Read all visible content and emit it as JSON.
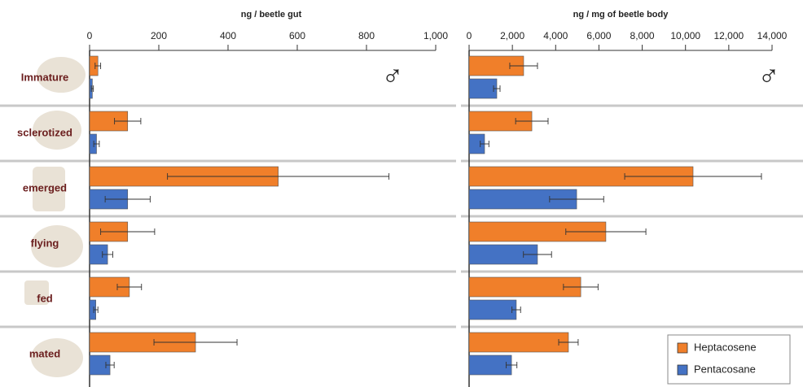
{
  "chart_data": [
    {
      "type": "bar",
      "orientation": "horizontal",
      "x_label": "ng / beetle gut",
      "annotation": "♂",
      "categories": [
        "Immature",
        "sclerotized",
        "emerged",
        "flying",
        "fed",
        "mated"
      ],
      "xlim": [
        0,
        1000
      ],
      "xticks": [
        0,
        200,
        400,
        600,
        800,
        {
          "value": 1000,
          "label": "1,000"
        }
      ],
      "series": [
        {
          "color": "#f07f2a",
          "values": [
            24,
            110,
            545,
            110,
            115,
            306
          ],
          "errors": [
            8,
            38,
            320,
            78,
            35,
            120
          ]
        },
        {
          "color": "#4472c4",
          "values": [
            8,
            20,
            110,
            52,
            18,
            59
          ],
          "errors": [
            3,
            8,
            65,
            15,
            6,
            12
          ]
        }
      ]
    },
    {
      "type": "bar",
      "orientation": "horizontal",
      "x_label": "ng / mg of beetle body",
      "annotation": "♂",
      "xlim": [
        0,
        14000
      ],
      "xticks": [
        0,
        {
          "value": 2000,
          "label": "2,000"
        },
        {
          "value": 4000,
          "label": "4,000"
        },
        {
          "value": 6000,
          "label": "6,000"
        },
        {
          "value": 8000,
          "label": "8,000"
        },
        {
          "value": 10000,
          "label": "10,000"
        },
        {
          "value": 12000,
          "label": "12,000"
        },
        {
          "value": 14000,
          "label": "14,000"
        }
      ],
      "legend": "lower right",
      "series": [
        {
          "name": "Heptacosene",
          "color": "#f07f2a",
          "values": [
            2520,
            2900,
            10350,
            6320,
            5160,
            4590
          ],
          "errors": [
            640,
            750,
            3160,
            1850,
            800,
            450
          ]
        },
        {
          "name": "Pentacosane",
          "color": "#4472c4",
          "values": [
            1280,
            715,
            4970,
            3160,
            2180,
            1960
          ],
          "errors": [
            150,
            200,
            1250,
            650,
            200,
            250
          ]
        }
      ]
    }
  ]
}
